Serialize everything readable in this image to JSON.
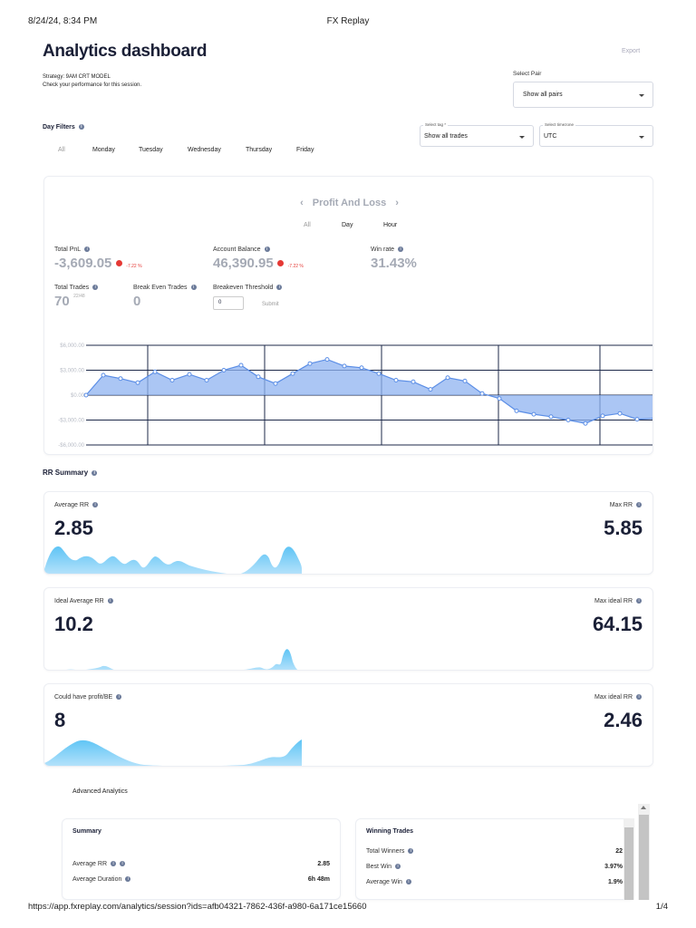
{
  "print": {
    "datetime": "8/24/24, 8:34 PM",
    "page_title": "FX Replay",
    "url": "https://app.fxreplay.com/analytics/session?ids=afb04321-7862-436f-a980-6a171ce15660",
    "page_number": "1/4"
  },
  "header": {
    "title": "Analytics dashboard",
    "export_label": "Export",
    "strategy": "Strategy: 9AM CRT MODEL",
    "subtitle": "Check your performance for this session."
  },
  "select_pair": {
    "label": "Select Pair",
    "value": "Show all pairs"
  },
  "day_filters": {
    "label": "Day Filters",
    "days": [
      "All",
      "Monday",
      "Tuesday",
      "Wednesday",
      "Thursday",
      "Friday"
    ]
  },
  "select_tag": {
    "label": "Select tag *",
    "value": "Show all trades"
  },
  "select_timezone": {
    "label": "Select timezone",
    "value": "UTC"
  },
  "pnl": {
    "heading": "Profit And Loss",
    "tabs": [
      "All",
      "Day",
      "Hour"
    ],
    "total_pnl_label": "Total PnL",
    "total_pnl": "-3,609.05",
    "total_pnl_change": "-7.22 %",
    "account_balance_label": "Account Balance",
    "account_balance": "46,390.95",
    "account_balance_change": "-7.22 %",
    "win_rate_label": "Win rate",
    "win_rate": "31.43%",
    "total_trades_label": "Total Trades",
    "total_trades": "70",
    "total_trades_sub": "22/48",
    "break_even_label": "Break Even Trades",
    "break_even": "0",
    "threshold_label": "Breakeven Threshold",
    "threshold_value": "0",
    "submit_label": "Submit"
  },
  "chart_data": {
    "type": "area",
    "y_ticks": [
      "$6,000.00",
      "$3,000.00",
      "$0.00",
      "-$3,000.00",
      "-$6,000.00"
    ],
    "ylim": [
      -6000,
      6000
    ],
    "grid": true,
    "values": [
      0,
      2400,
      2000,
      1500,
      2800,
      1800,
      2500,
      1800,
      3000,
      3600,
      2200,
      1400,
      2600,
      3800,
      4300,
      3500,
      3300,
      2600,
      1800,
      1600,
      700,
      2100,
      1700,
      200,
      -400,
      -1900,
      -2300,
      -2600,
      -3000,
      -3400,
      -2500,
      -2200,
      -2900,
      -2800
    ]
  },
  "rr_summary": {
    "label": "RR Summary",
    "cards": [
      {
        "left_label": "Average RR",
        "left_value": "2.85",
        "right_label": "Max RR",
        "right_value": "5.85"
      },
      {
        "left_label": "Ideal Average RR",
        "left_value": "10.2",
        "right_label": "Max ideal RR",
        "right_value": "64.15"
      },
      {
        "left_label": "Could have profit/BE",
        "left_value": "8",
        "right_label": "Max ideal RR",
        "right_value": "2.46"
      }
    ]
  },
  "advanced": {
    "label": "Advanced Analytics",
    "summary": {
      "title": "Summary",
      "rows": [
        {
          "label": "Average RR",
          "value": "2.85"
        },
        {
          "label": "Average Duration",
          "value": "6h 48m"
        }
      ]
    },
    "winning": {
      "title": "Winning Trades",
      "rows": [
        {
          "label": "Total Winners",
          "value": "22"
        },
        {
          "label": "Best Win",
          "value": "3.97%"
        },
        {
          "label": "Average Win",
          "value": "1.9%"
        }
      ]
    }
  },
  "colors": {
    "accent": "#5b8ee6",
    "fill": "#8fb3f0",
    "negative": "#e53935",
    "spark": "#57b8f0"
  }
}
